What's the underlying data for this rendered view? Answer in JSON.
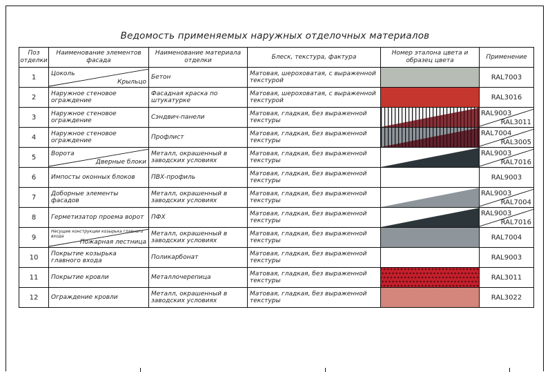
{
  "title": "Ведомость применяемых наружных отделочных материалов",
  "headers": {
    "pos": "Поз отделки",
    "element": "Наименование элементов фасада",
    "material": "Наименование материала отделки",
    "texture": "Блеск, текстура, фактура",
    "color": "Номер эталона цвета и образец цвета",
    "use": "Применение"
  },
  "rows": [
    {
      "pos": "1",
      "element": "Цоколь",
      "element2": "Крыльцо",
      "material": "Бетон",
      "texture": "Матовая, шероховатая, с выраженной текстурой",
      "ral": "RAL7003",
      "swatch": {
        "type": "solid",
        "c1": "#b7bcb4"
      }
    },
    {
      "pos": "2",
      "element": "Наружное стеновое ограждение",
      "material": "Фасадная краска по штукатурке",
      "texture": "Матовая, шероховатая, с выраженной текстурой",
      "ral": "RAL3016",
      "swatch": {
        "type": "solid",
        "c1": "#c5372e"
      }
    },
    {
      "pos": "3",
      "element": "Наружное стеновое ограждение",
      "material": "Сэндвич-панели",
      "texture": "Матовая, гладкая, без выраженной текстуры",
      "ral": "RAL9003",
      "ral2": "RAL3011",
      "swatch": {
        "type": "stripe-diag",
        "c1": "#f6f6f6",
        "c2": "#7a1b24"
      }
    },
    {
      "pos": "4",
      "element": "Наружное стеновое ограждение",
      "material": "Профлист",
      "texture": "Матовая, гладкая, без выраженной текстуры",
      "ral": "RAL7004",
      "ral2": "RAL3005",
      "swatch": {
        "type": "stripe-diag",
        "c1": "#8e959b",
        "c2": "#5c1622"
      }
    },
    {
      "pos": "5",
      "element": "Ворота",
      "element2": "Дверные блоки",
      "material": "Металл, окрашенный в заводских условиях",
      "texture": "Матовая, гладкая, без выраженной текстуры",
      "ral": "RAL9003",
      "ral2": "RAL7016",
      "swatch": {
        "type": "diag",
        "c1": "#ffffff",
        "c2": "#2c353a"
      }
    },
    {
      "pos": "6",
      "element": "Импосты оконных блоков",
      "material": "ПВХ-профиль",
      "texture": "Матовая, гладкая, без выраженной текстуры",
      "ral": "RAL9003",
      "swatch": {
        "type": "solid",
        "c1": "#ffffff"
      }
    },
    {
      "pos": "7",
      "element": "Доборные элементы фасадов",
      "material": "Металл, окрашенный в заводских условиях",
      "texture": "Матовая, гладкая, без выраженной текстуры",
      "ral": "RAL9003",
      "ral2": "RAL7004",
      "swatch": {
        "type": "diag",
        "c1": "#ffffff",
        "c2": "#8e959b"
      }
    },
    {
      "pos": "8",
      "element": "Герметизатор проема ворот",
      "material": "ПФХ",
      "texture": "Матовая, гладкая, без выраженной текстуры",
      "ral": "RAL9003",
      "ral2": "RAL7016",
      "swatch": {
        "type": "diag",
        "c1": "#ffffff",
        "c2": "#2c353a"
      }
    },
    {
      "pos": "9",
      "element": "Несущие конструкции козырька главного входа",
      "element2": "Пожарная лестница",
      "material": "Металл, окрашенный в заводских условиях",
      "texture": "Матовая, гладкая, без выраженной текстуры",
      "ral": "RAL7004",
      "swatch": {
        "type": "solid",
        "c1": "#8e959b"
      }
    },
    {
      "pos": "10",
      "element": "Покрытие козырька главного входа",
      "material": "Поликарбонат",
      "texture": "Матовая, гладкая, без выраженной текстуры",
      "ral": "RAL9003",
      "swatch": {
        "type": "solid",
        "c1": "#ffffff"
      }
    },
    {
      "pos": "11",
      "element": "Покрытие кровли",
      "material": "Металлочерепица",
      "texture": "Матовая, гладкая, без выраженной текстуры",
      "ral": "RAL3011",
      "swatch": {
        "type": "scales",
        "c1": "#c4202c",
        "c2": "#6b0d14"
      }
    },
    {
      "pos": "12",
      "element": "Ограждение кровли",
      "material": "Металл, окрашенный в заводских условиях",
      "texture": "Матовая, гладкая, без выраженной текстуры",
      "ral": "RAL3022",
      "swatch": {
        "type": "solid",
        "c1": "#d4867c"
      }
    }
  ]
}
